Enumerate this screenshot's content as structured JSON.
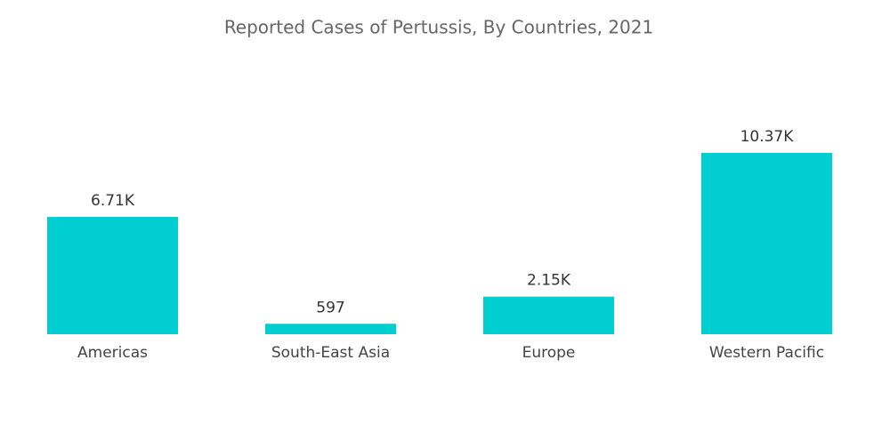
{
  "chart_data": {
    "type": "bar",
    "title": "Reported Cases of Pertussis, By Countries, 2021",
    "categories": [
      "Americas",
      "South-East Asia",
      "Europe",
      "Western Pacific"
    ],
    "values": [
      6710,
      597,
      2150,
      10370
    ],
    "value_labels": [
      "6.71K",
      "597",
      "2.15K",
      "10.37K"
    ],
    "color": "#00ced1"
  }
}
